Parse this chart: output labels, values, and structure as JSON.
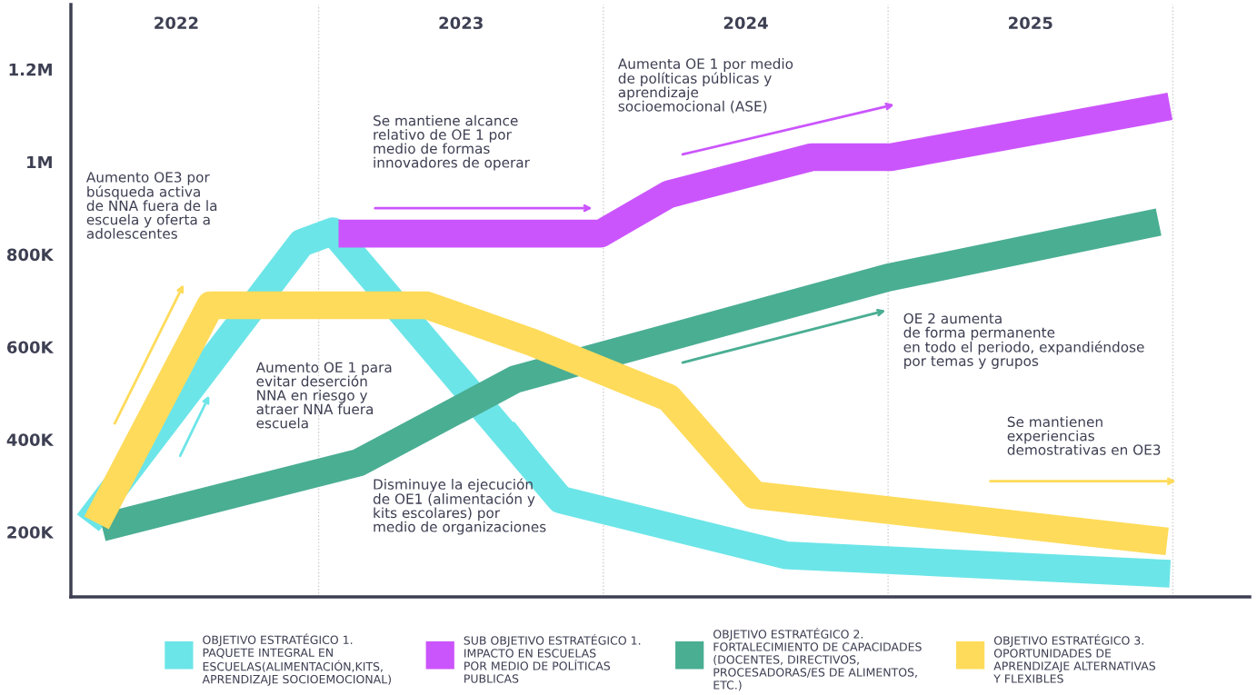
{
  "chart_data": {
    "type": "line",
    "xlim": [
      2021.63,
      2025.77
    ],
    "ylim": [
      60000,
      1340000
    ],
    "xticks": [
      2022,
      2023,
      2024,
      2025
    ],
    "yticks": [
      {
        "value": 200000,
        "label": "200K"
      },
      {
        "value": 400000,
        "label": "400K"
      },
      {
        "value": 600000,
        "label": "600K"
      },
      {
        "value": 800000,
        "label": "800K"
      },
      {
        "value": 1000000,
        "label": "1M"
      },
      {
        "value": 1200000,
        "label": "1.2M"
      }
    ],
    "grid": false,
    "legend": "bottom",
    "marker": "none",
    "line_style": "solid",
    "ref_lines": [
      {
        "axis": "x",
        "value": 2022.5,
        "label": null,
        "color": "#cccccc",
        "line_style": "dotted"
      },
      {
        "axis": "x",
        "value": 2023.5,
        "label": null,
        "color": "#cccccc",
        "line_style": "dotted"
      },
      {
        "axis": "x",
        "value": 2024.5,
        "label": null,
        "color": "#cccccc",
        "line_style": "dotted"
      },
      {
        "axis": "x",
        "value": 2025.5,
        "label": null,
        "color": "#cccccc",
        "line_style": "dotted"
      }
    ],
    "series": [
      {
        "name": "OBJETIVO ESTRATÉGICO 1.\nPAQUETE INTEGRAL EN\nESCUELAS(ALIMENTACIÓN,KITS,\nAPRENDIZAJE SOCIOEMOCIONAL)",
        "color": "#6ce5e8",
        "x": [
          2021.69,
          2022.44,
          2022.55,
          2023.35,
          2024.14,
          2025.49
        ],
        "values": [
          220000,
          825000,
          850000,
          270000,
          150000,
          110000
        ]
      },
      {
        "name": "SUB OBJETIVO ESTRATÉGICO 1.\nIMPACTO EN ESCUELAS\nPOR MEDIO DE POLÍTICAS\nPUBLICAS",
        "color": "#cb55fd",
        "x": [
          2022.57,
          2023.49,
          2023.73,
          2024.23,
          2024.51,
          2025.49
        ],
        "values": [
          845000,
          845000,
          930000,
          1010000,
          1010000,
          1120000
        ]
      },
      {
        "name": "OBJETIVO ESTRATÉGICO 2.\nFORTALECIMIENTO DE CAPACIDADES\n(DOCENTES, DIRECTIVOS,\nPROCESADORAS/ES DE ALIMENTOS,\nETC.)",
        "color": "#4aae93",
        "x": [
          2021.74,
          2022.64,
          2023.19,
          2024.5,
          2025.45
        ],
        "values": [
          210000,
          350000,
          530000,
          750000,
          870000
        ]
      },
      {
        "name": "OBJETIVO ESTRATÉGICO 3.\nOPORTUNIDADES DE\nAPRENDIZAJE ALTERNATIVAS\nY FLEXIBLES",
        "color": "#fedb5a",
        "x": [
          2021.72,
          2022.12,
          2022.88,
          2023.25,
          2023.73,
          2024.03,
          2025.48
        ],
        "values": [
          220000,
          690000,
          690000,
          610000,
          490000,
          280000,
          180000
        ]
      }
    ],
    "annotations": [
      "Aumento OE3 por\nbúsqueda activa\nde NNA fuera de la\nescuela y oferta a\nadolescentes",
      "Aumento OE 1 para\nevitar deserción\nNNA en riesgo y\natraer NNA fuera\nescuela",
      "Se mantiene alcance\nrelativo de OE 1 por\nmedio de formas\ninnovadores de operar",
      "Disminuye la ejecución\nde OE1 (alimentación y\nkits escolares) por\nmedio de organizaciones",
      "Aumenta OE 1 por medio\nde políticas públicas y\naprendizaje\nsocioemocional (ASE)",
      "OE 2 aumenta\nde forma permanente\nen todo el periodo, expandiéndose\npor temas y grupos",
      "Se mantienen\nexperiencias\ndemostrativas en OE3"
    ]
  }
}
